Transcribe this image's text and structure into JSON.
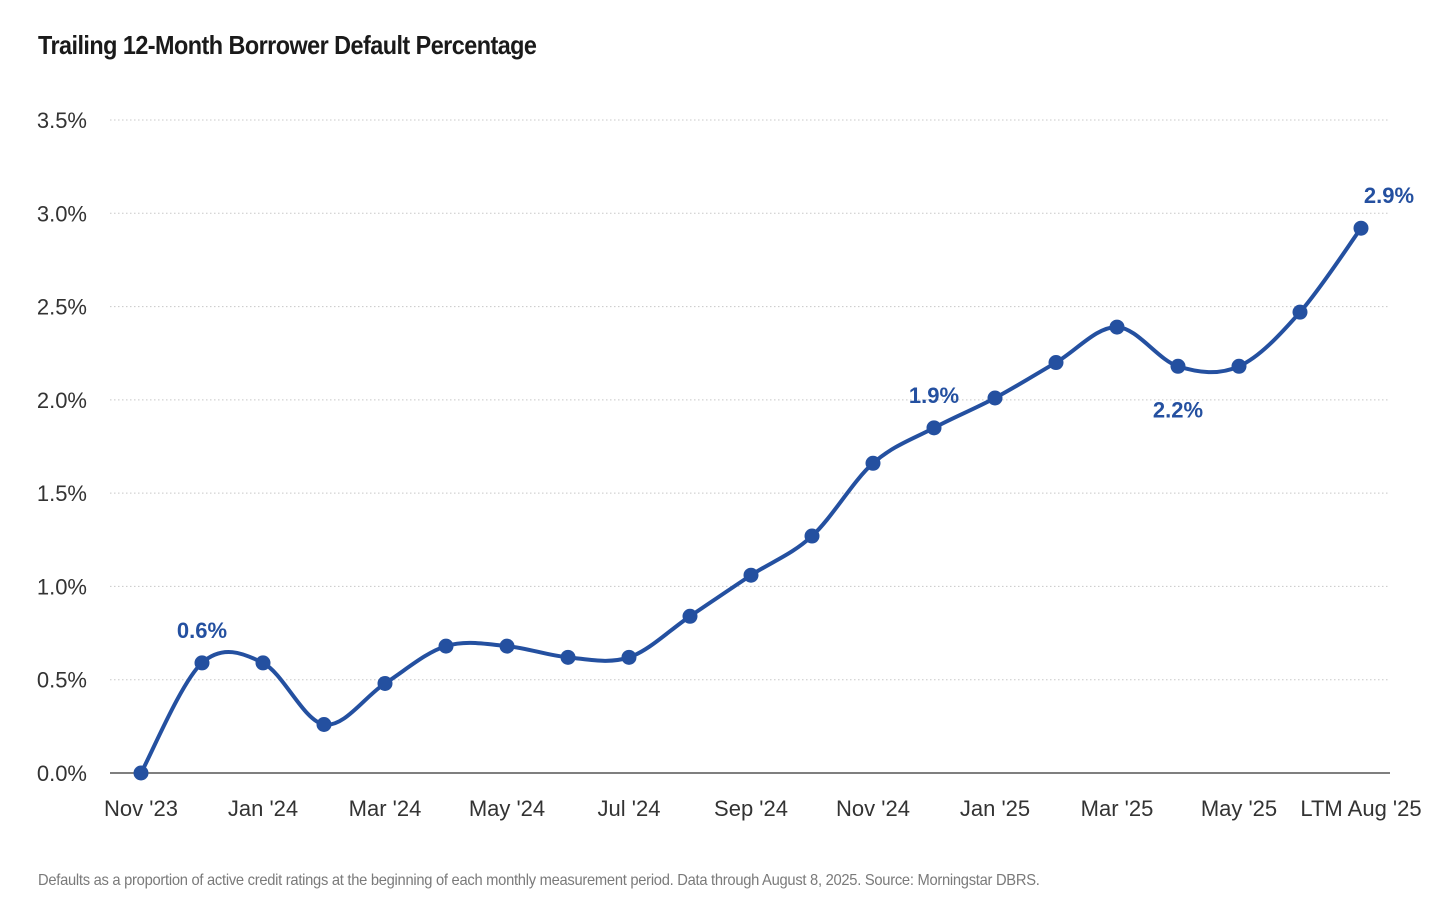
{
  "chart_data": {
    "type": "line",
    "title": "Trailing 12-Month Borrower Default Percentage",
    "footnote": "Defaults as a proportion of active credit ratings at the beginning of each monthly measurement period. Data through August 8, 2025. Source: Morningstar DBRS.",
    "categories": [
      "Nov '23",
      "Dec '23",
      "Jan '24",
      "Feb '24",
      "Mar '24",
      "Apr '24",
      "May '24",
      "Jun '24",
      "Jul '24",
      "Aug '24",
      "Sep '24",
      "Oct '24",
      "Nov '24",
      "Dec '24",
      "Jan '25",
      "Feb '25",
      "Mar '25",
      "Apr '25",
      "May '25",
      "Jun '25",
      "LTM Aug '25"
    ],
    "x_tick_labels": [
      "Nov '23",
      "",
      "Jan '24",
      "",
      "Mar '24",
      "",
      "May '24",
      "",
      "Jul '24",
      "",
      "Sep '24",
      "",
      "Nov '24",
      "",
      "Jan '25",
      "",
      "Mar '25",
      "",
      "May '25",
      "",
      "LTM Aug '25"
    ],
    "series": [
      {
        "name": "Trailing 12-Month Borrower Default Percentage",
        "values": [
          0.0,
          0.59,
          0.59,
          0.26,
          0.48,
          0.68,
          0.68,
          0.62,
          0.62,
          0.84,
          1.06,
          1.27,
          1.66,
          1.85,
          2.01,
          2.2,
          2.39,
          2.18,
          2.18,
          2.47,
          2.92
        ]
      }
    ],
    "annotations": [
      {
        "index": 1,
        "text": "0.6%",
        "position": "above"
      },
      {
        "index": 13,
        "text": "1.9%",
        "position": "above"
      },
      {
        "index": 17,
        "text": "2.2%",
        "position": "below"
      },
      {
        "index": 20,
        "text": "2.9%",
        "position": "above"
      }
    ],
    "ylim": [
      0,
      3.5
    ],
    "y_ticks": [
      0,
      0.5,
      1.0,
      1.5,
      2.0,
      2.5,
      3.0,
      3.5
    ],
    "y_tick_labels": [
      "0.0%",
      "0.5%",
      "1.0%",
      "1.5%",
      "2.0%",
      "2.5%",
      "3.0%",
      "3.5%"
    ],
    "grid": "horizontal-dotted",
    "xlabel": "",
    "ylabel": "",
    "line_color": "#2450a0",
    "grid_color": "#c8c8c8",
    "axis_color": "#333333"
  }
}
